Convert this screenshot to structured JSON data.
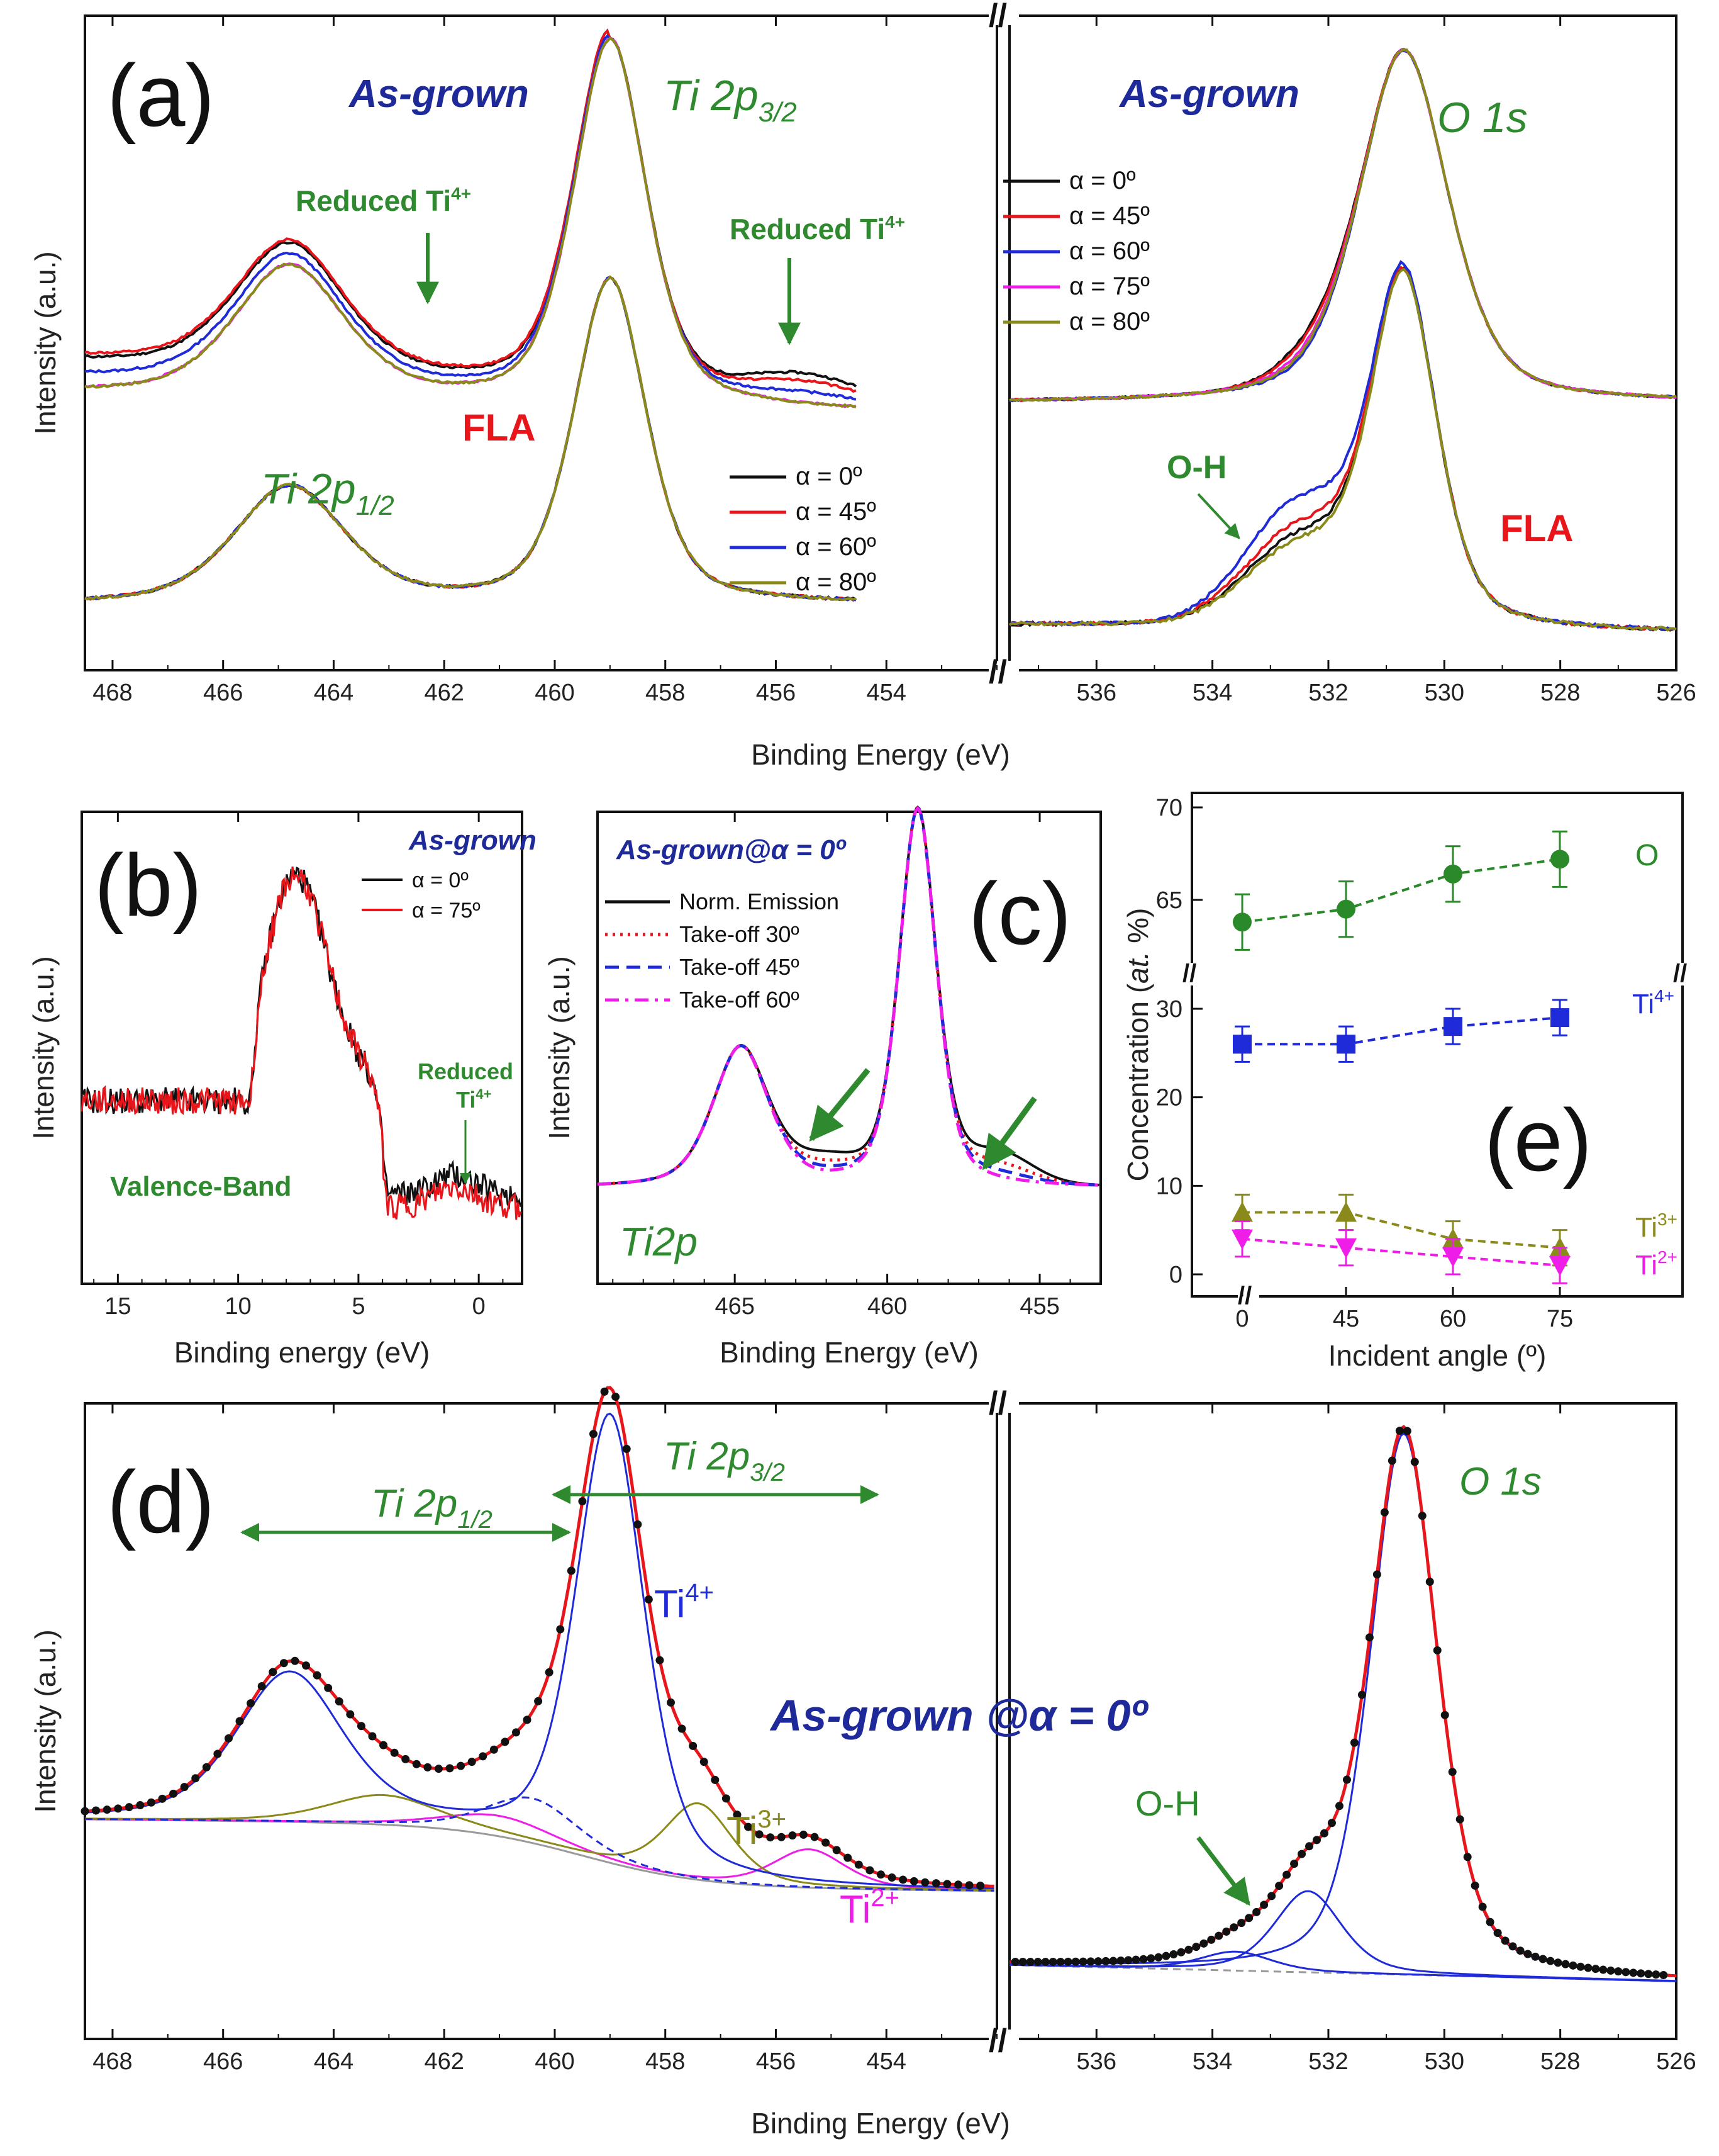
{
  "figure": {
    "colors": {
      "black": "#111111",
      "red": "#e8151b",
      "blue": "#1f2ad8",
      "magenta": "#ee1ee8",
      "olive": "#8a8a1a",
      "green": "#2f8a2f",
      "navy": "#1f2a9a",
      "grey": "#9a9a9a"
    }
  },
  "chart_data": [
    {
      "id": "a",
      "type": "line",
      "panel_label": "(a)",
      "title_left": "Ti 2p3/2",
      "title_right": "O 1s",
      "ylabel": "Intensity (a.u.)",
      "xlabel": "Binding Energy (eV)",
      "x_left": {
        "xlim": [
          468.5,
          452.0
        ],
        "ticks": [
          468,
          466,
          464,
          462,
          460,
          458,
          456,
          454
        ]
      },
      "x_right": {
        "xlim": [
          537.5,
          526.0
        ],
        "ticks": [
          536,
          534,
          532,
          530,
          528,
          526
        ]
      },
      "labels": {
        "as_grown_left": "As-grown",
        "as_grown_right": "As-grown",
        "ti2p32_main": "Ti 2p",
        "ti2p32_sub": "3/2",
        "ti2p12_main": "Ti 2p",
        "ti2p12_sub": "1/2",
        "o1s": "O 1s",
        "fla_left": "FLA",
        "fla_right": "FLA",
        "reduced1": "Reduced Ti",
        "reduced1_sup": "4+",
        "reduced2": "Reduced Ti",
        "reduced2_sup": "4+",
        "oh": "O-H",
        "axis_break": "//"
      },
      "legend_top": [
        {
          "name": "α = 0º",
          "color": "#111111"
        },
        {
          "name": "α = 45º",
          "color": "#e8151b"
        },
        {
          "name": "α = 60º",
          "color": "#1f2ad8"
        },
        {
          "name": "α = 75º",
          "color": "#ee1ee8"
        },
        {
          "name": "α = 80º",
          "color": "#8a8a1a"
        }
      ],
      "legend_bottom": [
        {
          "name": "α = 0º",
          "color": "#111111"
        },
        {
          "name": "α = 45º",
          "color": "#e8151b"
        },
        {
          "name": "α = 60º",
          "color": "#1f2ad8"
        },
        {
          "name": "α = 80º",
          "color": "#8a8a1a"
        }
      ],
      "peaks": {
        "ti2p32_eV": 459.0,
        "ti2p12_eV": 464.8,
        "o1s_eV": 530.7,
        "oh_eV": 532.5
      }
    },
    {
      "id": "b",
      "type": "line",
      "panel_label": "(b)",
      "title": "As-grown",
      "annotation": "Valence-Band",
      "reduced": "Reduced",
      "reduced_ti": "Ti",
      "reduced_sup": "4+",
      "ylabel": "Intensity (a.u.)",
      "xlabel": "Binding energy (eV)",
      "xlim": [
        16.5,
        -1.8
      ],
      "ticks": [
        15,
        10,
        5,
        0
      ],
      "series": [
        {
          "name": "α = 0º",
          "color": "#111111"
        },
        {
          "name": "α = 75º",
          "color": "#e8151b"
        }
      ]
    },
    {
      "id": "c",
      "type": "line",
      "panel_label": "(c)",
      "title": "As-grown@α = 0º",
      "annotation": "Ti2p",
      "ylabel": "Intensity (a.u.)",
      "xlabel": "Binding Energy (eV)",
      "xlim": [
        469.5,
        453.0
      ],
      "ticks": [
        465,
        460,
        455
      ],
      "series": [
        {
          "name": "Norm. Emission",
          "color": "#111111",
          "dash": "solid"
        },
        {
          "name": "Take-off 30º",
          "color": "#e8151b",
          "dash": "dotted"
        },
        {
          "name": "Take-off 45º",
          "color": "#1f2ad8",
          "dash": "dashed"
        },
        {
          "name": "Take-off 60º",
          "color": "#ee1ee8",
          "dash": "dashdot"
        }
      ]
    },
    {
      "id": "d",
      "type": "line",
      "panel_label": "(d)",
      "title": "As-grown @α = 0º",
      "ylabel": "Intensity (a.u.)",
      "xlabel": "Binding Energy (eV)",
      "x_left": {
        "xlim": [
          468.5,
          452.0
        ],
        "ticks": [
          468,
          466,
          464,
          462,
          460,
          458,
          456,
          454
        ]
      },
      "x_right": {
        "xlim": [
          537.5,
          526.0
        ],
        "ticks": [
          536,
          534,
          532,
          530,
          528,
          526
        ]
      },
      "labels": {
        "ti2p12_main": "Ti 2p",
        "ti2p12_sub": "1/2",
        "ti2p32_main": "Ti 2p",
        "ti2p32_sub": "3/2",
        "o1s": "O 1s",
        "oh": "O-H",
        "ti4": "Ti",
        "ti4_sup": "4+",
        "ti3": "Ti",
        "ti3_sup": "3+",
        "ti2": "Ti",
        "ti2_sup": "2+",
        "axis_break": "//"
      },
      "components": [
        {
          "name": "Ti4+",
          "color": "#1f2ad8",
          "peaks_eV": [
            459.0,
            464.8
          ]
        },
        {
          "name": "Ti3+",
          "color": "#8a8a1a",
          "peaks_eV": [
            457.4,
            463.1
          ]
        },
        {
          "name": "Ti2+",
          "color": "#ee1ee8",
          "peaks_eV": [
            455.4,
            461.0
          ]
        },
        {
          "name": "O 1s",
          "color": "#1f2ad8",
          "peaks_eV": [
            530.7,
            532.4,
            533.6
          ]
        }
      ]
    },
    {
      "id": "e",
      "type": "scatter",
      "panel_label": "(e)",
      "ylabel": "Concentration (at. %)",
      "xlabel": "Incident angle (º)",
      "x": [
        0,
        45,
        60,
        75
      ],
      "x_ticks": [
        "0",
        "45",
        "60",
        "75"
      ],
      "y_ticks_upper": [
        "65",
        "70"
      ],
      "y_ticks_lower": [
        "0",
        "10",
        "20",
        "30"
      ],
      "series": [
        {
          "name": "O",
          "color": "#2a8a2a",
          "marker": "circle",
          "values": [
            63.8,
            64.5,
            66.4,
            67.2
          ],
          "err": [
            1.5,
            1.5,
            1.5,
            1.5
          ]
        },
        {
          "name": "Ti4+",
          "color": "#1f2ad8",
          "marker": "square",
          "values": [
            26,
            26,
            28,
            29
          ],
          "err": [
            2,
            2,
            2,
            2
          ]
        },
        {
          "name": "Ti3+",
          "color": "#8a8a1a",
          "marker": "triangle-up",
          "values": [
            7,
            7,
            4,
            3
          ],
          "err": [
            2,
            2,
            2,
            2
          ]
        },
        {
          "name": "Ti2+",
          "color": "#ee1ee8",
          "marker": "triangle-down",
          "values": [
            4,
            3,
            2,
            1
          ],
          "err": [
            2,
            2,
            2,
            2
          ]
        }
      ],
      "labels": {
        "o": "O",
        "ti4": "Ti",
        "ti4_sup": "4+",
        "ti3": "Ti",
        "ti3_sup": "3+",
        "ti2": "Ti",
        "ti2_sup": "2+",
        "ylabel_a": "Concentration (",
        "ylabel_b": "at.",
        "ylabel_c": " %)"
      }
    }
  ]
}
